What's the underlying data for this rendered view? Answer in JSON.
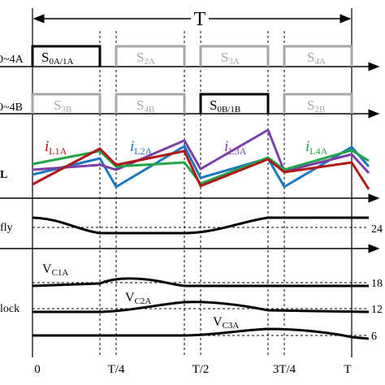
{
  "header": {
    "period_label": "T"
  },
  "rows": {
    "row1_label": "0~4A",
    "row2_label": "0~4B",
    "row3_label": "L",
    "row4_label": "fly",
    "row5_label": "lock",
    "row4_right": "24",
    "row5_right_a": "18",
    "row5_right_b": "12",
    "row5_right_c": "6"
  },
  "states": {
    "s0a_main": "S",
    "s0a_sub": "0A/1A",
    "s2a_main": "S",
    "s2a_sub": "2A",
    "s3a_main": "S",
    "s3a_sub": "3A",
    "s4a_main": "S",
    "s4a_sub": "4A",
    "s3b_main": "S",
    "s3b_sub": "3B",
    "s4b_main": "S",
    "s4b_sub": "4B",
    "s0b_main": "S",
    "s0b_sub": "0B/1B",
    "s2b_main": "S",
    "s2b_sub": "2B"
  },
  "currents": {
    "l1_main": "i",
    "l1_sub": "L1A",
    "l2_main": "i",
    "l2_sub": "L2A",
    "l3_main": "i",
    "l3_sub": "L3A",
    "l4_main": "i",
    "l4_sub": "L4A"
  },
  "voltages": {
    "c1_main": "V",
    "c1_sub": "C1A",
    "c2_main": "V",
    "c2_sub": "C2A",
    "c3_main": "V",
    "c3_sub": "C3A"
  },
  "x_axis": {
    "t0": "0",
    "t1": "T/4",
    "t2": "T/2",
    "t3": "3T/4",
    "t4": "T"
  },
  "colors": {
    "l1": "#b01818",
    "l2": "#1a78c2",
    "l3": "#7b3fa6",
    "l4": "#22a548",
    "active_box": "#000000",
    "inactive_box": "#a6a6a6"
  }
}
